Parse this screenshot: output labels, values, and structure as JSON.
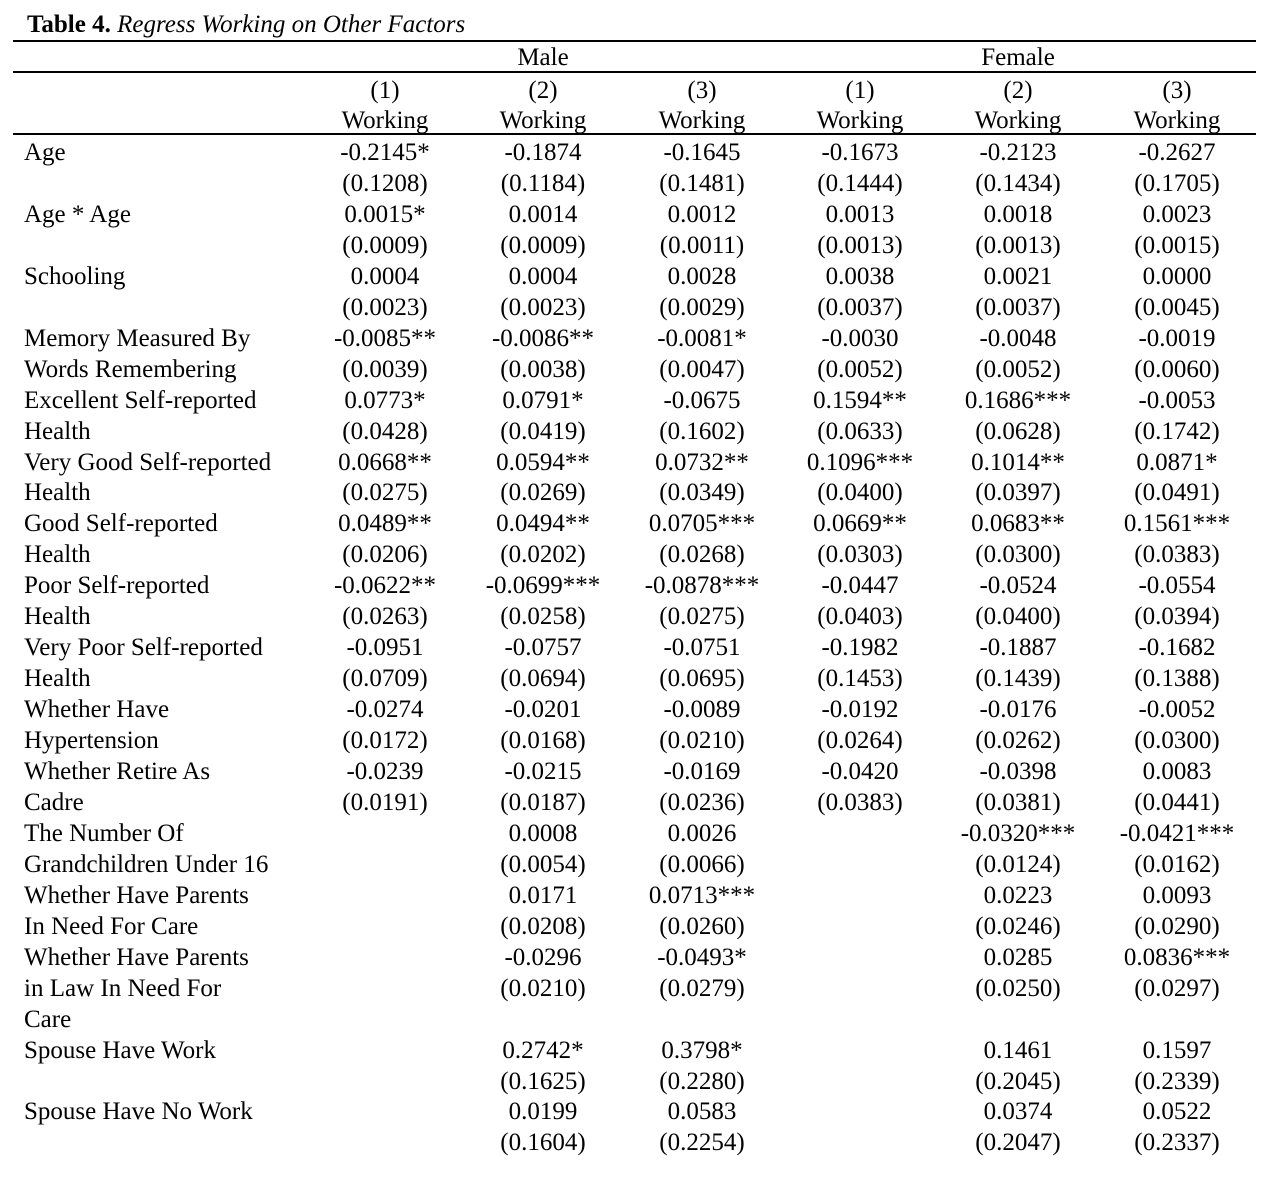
{
  "title": {
    "label": "Table 4.",
    "caption": "Regress Working on Other Factors"
  },
  "groups": [
    "Male",
    "Female"
  ],
  "columns": [
    {
      "number": "(1)",
      "dep": "Working"
    },
    {
      "number": "(2)",
      "dep": "Working"
    },
    {
      "number": "(3)",
      "dep": "Working"
    },
    {
      "number": "(1)",
      "dep": "Working"
    },
    {
      "number": "(2)",
      "dep": "Working"
    },
    {
      "number": "(3)",
      "dep": "Working"
    }
  ],
  "label_lines": [
    "Age",
    "",
    "Age * Age",
    "",
    "Schooling",
    "",
    "Memory Measured By",
    "Words Remembering",
    "Excellent Self-reported",
    "Health",
    "Very Good Self-reported",
    "Health",
    "Good Self-reported",
    "Health",
    "Poor Self-reported",
    "Health",
    "Very Poor Self-reported",
    "Health",
    "Whether Have",
    "Hypertension",
    "Whether Retire As",
    "Cadre",
    "The Number Of",
    "Grandchildren Under 16",
    "Whether Have Parents",
    "In Need For Care",
    "Whether Have Parents",
    "in Law In Need For",
    "Care",
    "Spouse Have Work",
    "",
    "Spouse Have No Work",
    ""
  ],
  "value_lines": [
    [
      "-0.2145*",
      "-0.1874",
      "-0.1645",
      "-0.1673",
      "-0.2123",
      "-0.2627"
    ],
    [
      "(0.1208)",
      "(0.1184)",
      "(0.1481)",
      "(0.1444)",
      "(0.1434)",
      "(0.1705)"
    ],
    [
      "0.0015*",
      "0.0014",
      "0.0012",
      "0.0013",
      "0.0018",
      "0.0023"
    ],
    [
      "(0.0009)",
      "(0.0009)",
      "(0.0011)",
      "(0.0013)",
      "(0.0013)",
      "(0.0015)"
    ],
    [
      "0.0004",
      "0.0004",
      "0.0028",
      "0.0038",
      "0.0021",
      "0.0000"
    ],
    [
      "(0.0023)",
      "(0.0023)",
      "(0.0029)",
      "(0.0037)",
      "(0.0037)",
      "(0.0045)"
    ],
    [
      "-0.0085**",
      "-0.0086**",
      "-0.0081*",
      "-0.0030",
      "-0.0048",
      "-0.0019"
    ],
    [
      "(0.0039)",
      "(0.0038)",
      "(0.0047)",
      "(0.0052)",
      "(0.0052)",
      "(0.0060)"
    ],
    [
      "0.0773*",
      "0.0791*",
      "-0.0675",
      "0.1594**",
      "0.1686***",
      "-0.0053"
    ],
    [
      "(0.0428)",
      "(0.0419)",
      "(0.1602)",
      "(0.0633)",
      "(0.0628)",
      "(0.1742)"
    ],
    [
      "0.0668**",
      "0.0594**",
      "0.0732**",
      "0.1096***",
      "0.1014**",
      "0.0871*"
    ],
    [
      "(0.0275)",
      "(0.0269)",
      "(0.0349)",
      "(0.0400)",
      "(0.0397)",
      "(0.0491)"
    ],
    [
      "0.0489**",
      "0.0494**",
      "0.0705***",
      "0.0669**",
      "0.0683**",
      "0.1561***"
    ],
    [
      "(0.0206)",
      "(0.0202)",
      "(0.0268)",
      "(0.0303)",
      "(0.0300)",
      "(0.0383)"
    ],
    [
      "-0.0622**",
      "-0.0699***",
      "-0.0878***",
      "-0.0447",
      "-0.0524",
      "-0.0554"
    ],
    [
      "(0.0263)",
      "(0.0258)",
      "(0.0275)",
      "(0.0403)",
      "(0.0400)",
      "(0.0394)"
    ],
    [
      "-0.0951",
      "-0.0757",
      "-0.0751",
      "-0.1982",
      "-0.1887",
      "-0.1682"
    ],
    [
      "(0.0709)",
      "(0.0694)",
      "(0.0695)",
      "(0.1453)",
      "(0.1439)",
      "(0.1388)"
    ],
    [
      "-0.0274",
      "-0.0201",
      "-0.0089",
      "-0.0192",
      "-0.0176",
      "-0.0052"
    ],
    [
      "(0.0172)",
      "(0.0168)",
      "(0.0210)",
      "(0.0264)",
      "(0.0262)",
      "(0.0300)"
    ],
    [
      "-0.0239",
      "-0.0215",
      "-0.0169",
      "-0.0420",
      "-0.0398",
      "0.0083"
    ],
    [
      "(0.0191)",
      "(0.0187)",
      "(0.0236)",
      "(0.0383)",
      "(0.0381)",
      "(0.0441)"
    ],
    [
      "",
      "0.0008",
      "0.0026",
      "",
      "-0.0320***",
      "-0.0421***"
    ],
    [
      "",
      "(0.0054)",
      "(0.0066)",
      "",
      "(0.0124)",
      "(0.0162)"
    ],
    [
      "",
      "0.0171",
      "0.0713***",
      "",
      "0.0223",
      "0.0093"
    ],
    [
      "",
      "(0.0208)",
      "(0.0260)",
      "",
      "(0.0246)",
      "(0.0290)"
    ],
    [
      "",
      "-0.0296",
      "-0.0493*",
      "",
      "0.0285",
      "0.0836***"
    ],
    [
      "",
      "(0.0210)",
      "(0.0279)",
      "",
      "(0.0250)",
      "(0.0297)"
    ],
    [
      "",
      "",
      "",
      "",
      "",
      ""
    ],
    [
      "",
      "0.2742*",
      "0.3798*",
      "",
      "0.1461",
      "0.1597"
    ],
    [
      "",
      "(0.1625)",
      "(0.2280)",
      "",
      "(0.2045)",
      "(0.2339)"
    ],
    [
      "",
      "0.0199",
      "0.0583",
      "",
      "0.0374",
      "0.0522"
    ],
    [
      "",
      "(0.1604)",
      "(0.2254)",
      "",
      "(0.2047)",
      "(0.2337)"
    ]
  ]
}
